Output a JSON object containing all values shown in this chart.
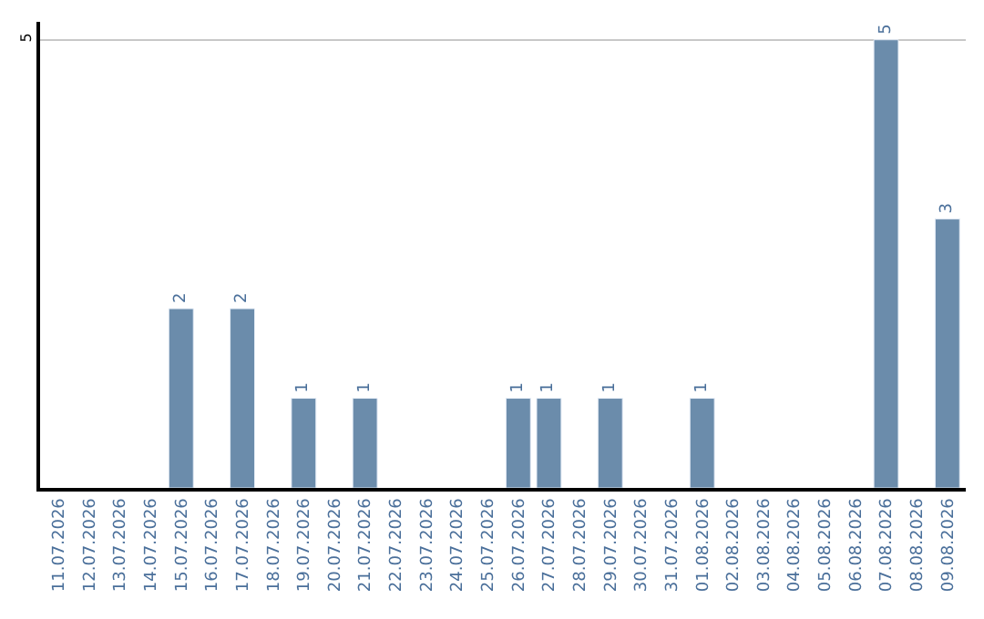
{
  "chart_data": {
    "type": "bar",
    "categories": [
      "11.07.2026",
      "12.07.2026",
      "13.07.2026",
      "14.07.2026",
      "15.07.2026",
      "16.07.2026",
      "17.07.2026",
      "18.07.2026",
      "19.07.2026",
      "20.07.2026",
      "21.07.2026",
      "22.07.2026",
      "23.07.2026",
      "24.07.2026",
      "25.07.2026",
      "26.07.2026",
      "27.07.2026",
      "28.07.2026",
      "29.07.2026",
      "30.07.2026",
      "31.07.2026",
      "01.08.2026",
      "02.08.2026",
      "03.08.2026",
      "04.08.2026",
      "05.08.2026",
      "06.08.2026",
      "07.08.2026",
      "08.08.2026",
      "09.08.2026"
    ],
    "values": [
      null,
      null,
      null,
      null,
      2,
      null,
      2,
      null,
      1,
      null,
      1,
      null,
      null,
      null,
      null,
      1,
      1,
      null,
      1,
      null,
      null,
      1,
      null,
      null,
      null,
      null,
      null,
      5,
      null,
      3
    ],
    "color": "#6b8cab",
    "ylim": [
      0,
      5.2
    ],
    "yticks": [
      5
    ],
    "grid": "y",
    "data_labels": true
  }
}
